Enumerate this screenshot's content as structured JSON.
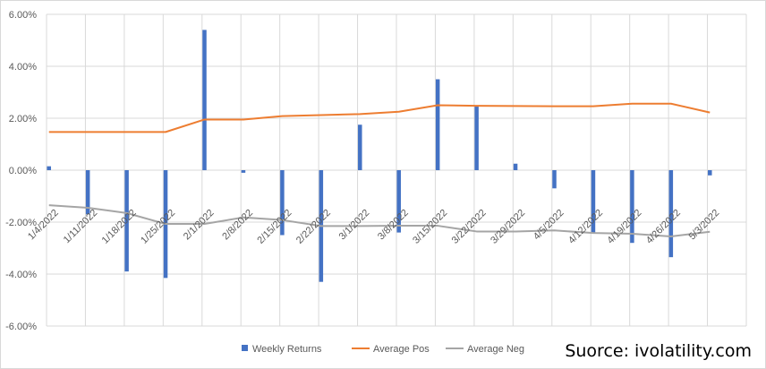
{
  "chart_data": {
    "type": "bar",
    "grid": "vertical",
    "legend_position": "bottom",
    "ylim": [
      -6,
      6
    ],
    "y_ticks": [
      "6.00%",
      "4.00%",
      "2.00%",
      "0.00%",
      "-2.00%",
      "-4.00%",
      "-6.00%"
    ],
    "y_tick_values": [
      6,
      4,
      2,
      0,
      -2,
      -4,
      -6
    ],
    "categories": [
      "1/4/2022",
      "1/11/2022",
      "1/18/2022",
      "1/25/2022",
      "2/1/2022",
      "2/8/2022",
      "2/15/2022",
      "2/22/2022",
      "3/1/2022",
      "3/8/2022",
      "3/15/2022",
      "3/22/2022",
      "3/29/2022",
      "4/5/2022",
      "4/12/2022",
      "4/19/2022",
      "4/26/2022",
      "5/3/2022"
    ],
    "series": [
      {
        "name": "Weekly Returns",
        "type": "bar",
        "color": "#4472C4",
        "values": [
          0.15,
          -1.7,
          -3.9,
          -4.15,
          5.4,
          -0.1,
          -2.5,
          -4.3,
          1.75,
          -2.4,
          3.5,
          2.45,
          0.25,
          -0.7,
          -2.4,
          -2.8,
          -3.35,
          -0.2
        ]
      },
      {
        "name": "Average Pos",
        "type": "line",
        "color": "#ED7D31",
        "values": [
          1.47,
          1.47,
          1.47,
          1.47,
          1.95,
          1.95,
          2.08,
          2.12,
          2.16,
          2.25,
          2.5,
          2.48,
          2.47,
          2.46,
          2.46,
          2.56,
          2.56,
          2.22
        ]
      },
      {
        "name": "Average Neg",
        "type": "line",
        "color": "#A5A5A5",
        "values": [
          -1.35,
          -1.45,
          -1.65,
          -2.07,
          -2.07,
          -1.82,
          -1.92,
          -2.15,
          -2.15,
          -2.14,
          -2.14,
          -2.36,
          -2.36,
          -2.32,
          -2.42,
          -2.45,
          -2.55,
          -2.37
        ]
      }
    ]
  },
  "source_note": "Suorce: ivolatility.com"
}
